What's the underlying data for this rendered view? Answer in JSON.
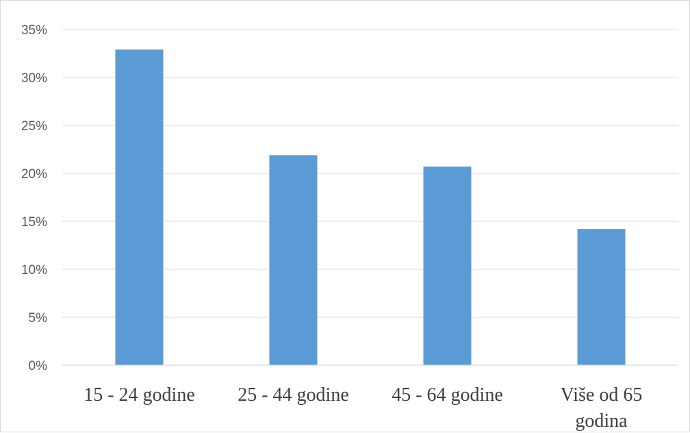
{
  "chart_data": {
    "type": "bar",
    "categories": [
      [
        "15 - 24 godine"
      ],
      [
        "25 - 44 godine"
      ],
      [
        "45 - 64 godine"
      ],
      [
        "Više od 65",
        "godina"
      ]
    ],
    "values": [
      32.9,
      21.9,
      20.7,
      14.2
    ],
    "yticks": [
      "0%",
      "5%",
      "10%",
      "15%",
      "20%",
      "25%",
      "30%",
      "35%"
    ],
    "ylim": [
      0,
      35
    ],
    "grid": true,
    "bar_color": "#5b9bd5",
    "title": "",
    "xlabel": "",
    "ylabel": ""
  }
}
